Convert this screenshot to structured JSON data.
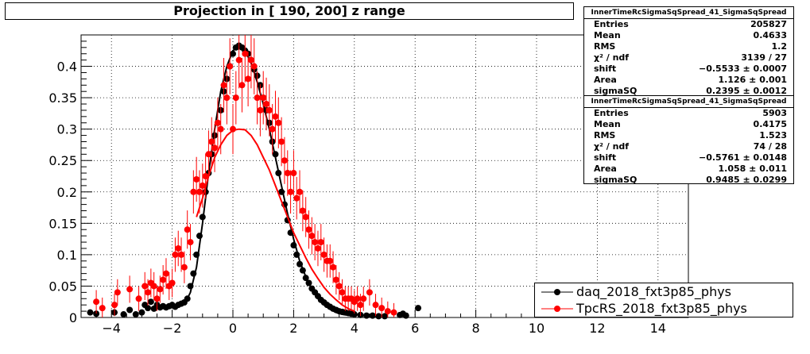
{
  "chart_data": {
    "type": "scatter",
    "title": "Projection in [ 190, 200] z range",
    "xlim": [
      -5,
      15
    ],
    "ylim": [
      0,
      0.45
    ],
    "x_ticks": [
      -4,
      -2,
      0,
      2,
      4,
      6,
      8,
      10,
      12,
      14
    ],
    "y_ticks": [
      0,
      0.05,
      0.1,
      0.15,
      0.2,
      0.25,
      0.3,
      0.35,
      0.4
    ],
    "y_tick_labels": [
      "0",
      "0.05",
      "0.1",
      "0.15",
      "0.2",
      "0.25",
      "0.3",
      "0.35",
      "0.4"
    ],
    "grid": true,
    "legend_position": "bottom-right",
    "series": [
      {
        "name": "daq_2018_fxt3p85_phys",
        "color": "#000000",
        "points": [
          [
            -4.7,
            0.008
          ],
          [
            -4.5,
            0.006
          ],
          [
            -3.9,
            0.008
          ],
          [
            -3.6,
            0.005
          ],
          [
            -3.4,
            0.012
          ],
          [
            -3.2,
            0.005
          ],
          [
            -3.0,
            0.008
          ],
          [
            -2.9,
            0.02
          ],
          [
            -2.8,
            0.015
          ],
          [
            -2.7,
            0.025
          ],
          [
            -2.6,
            0.014
          ],
          [
            -2.5,
            0.02
          ],
          [
            -2.4,
            0.016
          ],
          [
            -2.3,
            0.018
          ],
          [
            -2.2,
            0.016
          ],
          [
            -2.1,
            0.018
          ],
          [
            -2.0,
            0.02
          ],
          [
            -1.9,
            0.017
          ],
          [
            -1.8,
            0.02
          ],
          [
            -1.7,
            0.022
          ],
          [
            -1.6,
            0.024
          ],
          [
            -1.5,
            0.03
          ],
          [
            -1.4,
            0.05
          ],
          [
            -1.3,
            0.07
          ],
          [
            -1.2,
            0.1
          ],
          [
            -1.1,
            0.13
          ],
          [
            -1.0,
            0.16
          ],
          [
            -0.9,
            0.2
          ],
          [
            -0.8,
            0.23
          ],
          [
            -0.7,
            0.26
          ],
          [
            -0.6,
            0.29
          ],
          [
            -0.5,
            0.31
          ],
          [
            -0.4,
            0.33
          ],
          [
            -0.3,
            0.36
          ],
          [
            -0.2,
            0.38
          ],
          [
            -0.1,
            0.4
          ],
          [
            0.0,
            0.42
          ],
          [
            0.1,
            0.43
          ],
          [
            0.2,
            0.433
          ],
          [
            0.3,
            0.43
          ],
          [
            0.4,
            0.425
          ],
          [
            0.5,
            0.42
          ],
          [
            0.6,
            0.41
          ],
          [
            0.7,
            0.395
          ],
          [
            0.8,
            0.385
          ],
          [
            0.9,
            0.37
          ],
          [
            1.0,
            0.35
          ],
          [
            1.1,
            0.33
          ],
          [
            1.2,
            0.31
          ],
          [
            1.3,
            0.28
          ],
          [
            1.4,
            0.26
          ],
          [
            1.5,
            0.23
          ],
          [
            1.6,
            0.2
          ],
          [
            1.7,
            0.18
          ],
          [
            1.8,
            0.155
          ],
          [
            1.9,
            0.135
          ],
          [
            2.0,
            0.115
          ],
          [
            2.1,
            0.1
          ],
          [
            2.2,
            0.085
          ],
          [
            2.3,
            0.075
          ],
          [
            2.4,
            0.063
          ],
          [
            2.5,
            0.055
          ],
          [
            2.6,
            0.046
          ],
          [
            2.7,
            0.04
          ],
          [
            2.8,
            0.034
          ],
          [
            2.9,
            0.028
          ],
          [
            3.0,
            0.024
          ],
          [
            3.1,
            0.02
          ],
          [
            3.2,
            0.017
          ],
          [
            3.3,
            0.014
          ],
          [
            3.4,
            0.012
          ],
          [
            3.5,
            0.01
          ],
          [
            3.6,
            0.009
          ],
          [
            3.7,
            0.008
          ],
          [
            3.8,
            0.007
          ],
          [
            3.9,
            0.006
          ],
          [
            4.0,
            0.005
          ],
          [
            4.2,
            0.004
          ],
          [
            4.4,
            0.003
          ],
          [
            4.6,
            0.003
          ],
          [
            4.8,
            0.002
          ],
          [
            5.0,
            0.002
          ],
          [
            5.5,
            0.004
          ],
          [
            5.6,
            0.006
          ],
          [
            5.7,
            0.003
          ],
          [
            6.1,
            0.015
          ]
        ],
        "fit": [
          [
            -1.6,
            0.02
          ],
          [
            -1.4,
            0.04
          ],
          [
            -1.2,
            0.08
          ],
          [
            -1.0,
            0.15
          ],
          [
            -0.8,
            0.23
          ],
          [
            -0.6,
            0.3
          ],
          [
            -0.4,
            0.36
          ],
          [
            -0.2,
            0.4
          ],
          [
            0.0,
            0.425
          ],
          [
            0.2,
            0.432
          ],
          [
            0.4,
            0.425
          ],
          [
            0.6,
            0.405
          ],
          [
            0.8,
            0.375
          ],
          [
            1.0,
            0.34
          ],
          [
            1.2,
            0.3
          ],
          [
            1.4,
            0.255
          ],
          [
            1.6,
            0.21
          ],
          [
            1.8,
            0.165
          ],
          [
            2.0,
            0.125
          ],
          [
            2.2,
            0.09
          ],
          [
            2.4,
            0.065
          ],
          [
            2.6,
            0.045
          ],
          [
            2.8,
            0.03
          ],
          [
            3.0,
            0.02
          ],
          [
            3.2,
            0.013
          ],
          [
            3.4,
            0.008
          ],
          [
            3.6,
            0.005
          ],
          [
            4.0,
            0.002
          ]
        ]
      },
      {
        "name": "TpcRS_2018_fxt3p85_phys",
        "color": "#ff0000",
        "points": [
          [
            -4.5,
            0.025
          ],
          [
            -4.3,
            0.015
          ],
          [
            -3.9,
            0.02
          ],
          [
            -3.8,
            0.04
          ],
          [
            -3.4,
            0.045
          ],
          [
            -3.1,
            0.03
          ],
          [
            -2.9,
            0.05
          ],
          [
            -2.8,
            0.04
          ],
          [
            -2.7,
            0.055
          ],
          [
            -2.6,
            0.05
          ],
          [
            -2.5,
            0.03
          ],
          [
            -2.4,
            0.045
          ],
          [
            -2.3,
            0.06
          ],
          [
            -2.2,
            0.07
          ],
          [
            -2.1,
            0.05
          ],
          [
            -2.0,
            0.055
          ],
          [
            -1.9,
            0.1
          ],
          [
            -1.8,
            0.11
          ],
          [
            -1.7,
            0.1
          ],
          [
            -1.6,
            0.08
          ],
          [
            -1.5,
            0.14
          ],
          [
            -1.4,
            0.12
          ],
          [
            -1.3,
            0.2
          ],
          [
            -1.2,
            0.22
          ],
          [
            -1.1,
            0.2
          ],
          [
            -1.0,
            0.21
          ],
          [
            -0.9,
            0.225
          ],
          [
            -0.8,
            0.26
          ],
          [
            -0.7,
            0.28
          ],
          [
            -0.6,
            0.27
          ],
          [
            -0.5,
            0.31
          ],
          [
            -0.4,
            0.3
          ],
          [
            -0.3,
            0.37
          ],
          [
            -0.2,
            0.35
          ],
          [
            -0.1,
            0.4
          ],
          [
            0.0,
            0.3
          ],
          [
            0.1,
            0.35
          ],
          [
            0.2,
            0.41
          ],
          [
            0.3,
            0.37
          ],
          [
            0.4,
            0.42
          ],
          [
            0.5,
            0.38
          ],
          [
            0.6,
            0.41
          ],
          [
            0.7,
            0.4
          ],
          [
            0.8,
            0.35
          ],
          [
            0.9,
            0.33
          ],
          [
            1.0,
            0.35
          ],
          [
            1.1,
            0.34
          ],
          [
            1.2,
            0.33
          ],
          [
            1.3,
            0.3
          ],
          [
            1.4,
            0.32
          ],
          [
            1.5,
            0.31
          ],
          [
            1.6,
            0.28
          ],
          [
            1.7,
            0.25
          ],
          [
            1.8,
            0.23
          ],
          [
            1.9,
            0.2
          ],
          [
            2.0,
            0.23
          ],
          [
            2.1,
            0.19
          ],
          [
            2.2,
            0.2
          ],
          [
            2.3,
            0.17
          ],
          [
            2.4,
            0.16
          ],
          [
            2.5,
            0.14
          ],
          [
            2.6,
            0.13
          ],
          [
            2.7,
            0.12
          ],
          [
            2.8,
            0.11
          ],
          [
            2.9,
            0.12
          ],
          [
            3.0,
            0.1
          ],
          [
            3.1,
            0.09
          ],
          [
            3.2,
            0.09
          ],
          [
            3.3,
            0.08
          ],
          [
            3.4,
            0.06
          ],
          [
            3.5,
            0.05
          ],
          [
            3.6,
            0.04
          ],
          [
            3.7,
            0.03
          ],
          [
            3.8,
            0.03
          ],
          [
            3.9,
            0.03
          ],
          [
            4.0,
            0.025
          ],
          [
            4.1,
            0.03
          ],
          [
            4.2,
            0.02
          ],
          [
            4.3,
            0.03
          ],
          [
            4.5,
            0.04
          ],
          [
            4.7,
            0.02
          ],
          [
            4.9,
            0.015
          ],
          [
            5.1,
            0.01
          ],
          [
            5.3,
            0.008
          ]
        ],
        "fit": [
          [
            -1.2,
            0.16
          ],
          [
            -1.0,
            0.19
          ],
          [
            -0.8,
            0.225
          ],
          [
            -0.6,
            0.255
          ],
          [
            -0.4,
            0.275
          ],
          [
            -0.2,
            0.29
          ],
          [
            0.0,
            0.298
          ],
          [
            0.2,
            0.3
          ],
          [
            0.4,
            0.299
          ],
          [
            0.6,
            0.29
          ],
          [
            0.8,
            0.275
          ],
          [
            1.0,
            0.255
          ],
          [
            1.2,
            0.235
          ],
          [
            1.4,
            0.21
          ],
          [
            1.6,
            0.185
          ],
          [
            1.8,
            0.16
          ],
          [
            2.0,
            0.135
          ],
          [
            2.2,
            0.115
          ],
          [
            2.4,
            0.095
          ],
          [
            2.6,
            0.077
          ],
          [
            2.8,
            0.062
          ],
          [
            3.0,
            0.048
          ],
          [
            3.2,
            0.037
          ],
          [
            3.4,
            0.028
          ],
          [
            3.6,
            0.02
          ],
          [
            3.8,
            0.014
          ],
          [
            4.0,
            0.01
          ]
        ]
      }
    ]
  },
  "stats": [
    {
      "title": "InnerTimeRcSigmaSqSpread_41_SigmaSqSpread",
      "rows": [
        {
          "label": "Entries",
          "value": "205827"
        },
        {
          "label": "Mean",
          "value": "0.4633"
        },
        {
          "label": "RMS",
          "value": "1.2"
        },
        {
          "label": "χ² / ndf",
          "value": "3139 / 27"
        },
        {
          "label": "shift",
          "value": "−0.5533 ± 0.0007"
        },
        {
          "label": "Area",
          "value": "1.126 ± 0.001"
        },
        {
          "label": "sigmaSQ",
          "value": "0.2395 ± 0.0012"
        }
      ]
    },
    {
      "title": "InnerTimeRcSigmaSqSpread_41_SigmaSqSpread",
      "rows": [
        {
          "label": "Entries",
          "value": "5903"
        },
        {
          "label": "Mean",
          "value": "0.4175"
        },
        {
          "label": "RMS",
          "value": "1.523"
        },
        {
          "label": "χ² / ndf",
          "value": "74 / 28"
        },
        {
          "label": "shift",
          "value": "−0.5761 ± 0.0148"
        },
        {
          "label": "Area",
          "value": "1.058 ± 0.011"
        },
        {
          "label": "sigmaSQ",
          "value": "0.9485 ± 0.0299"
        }
      ]
    }
  ]
}
